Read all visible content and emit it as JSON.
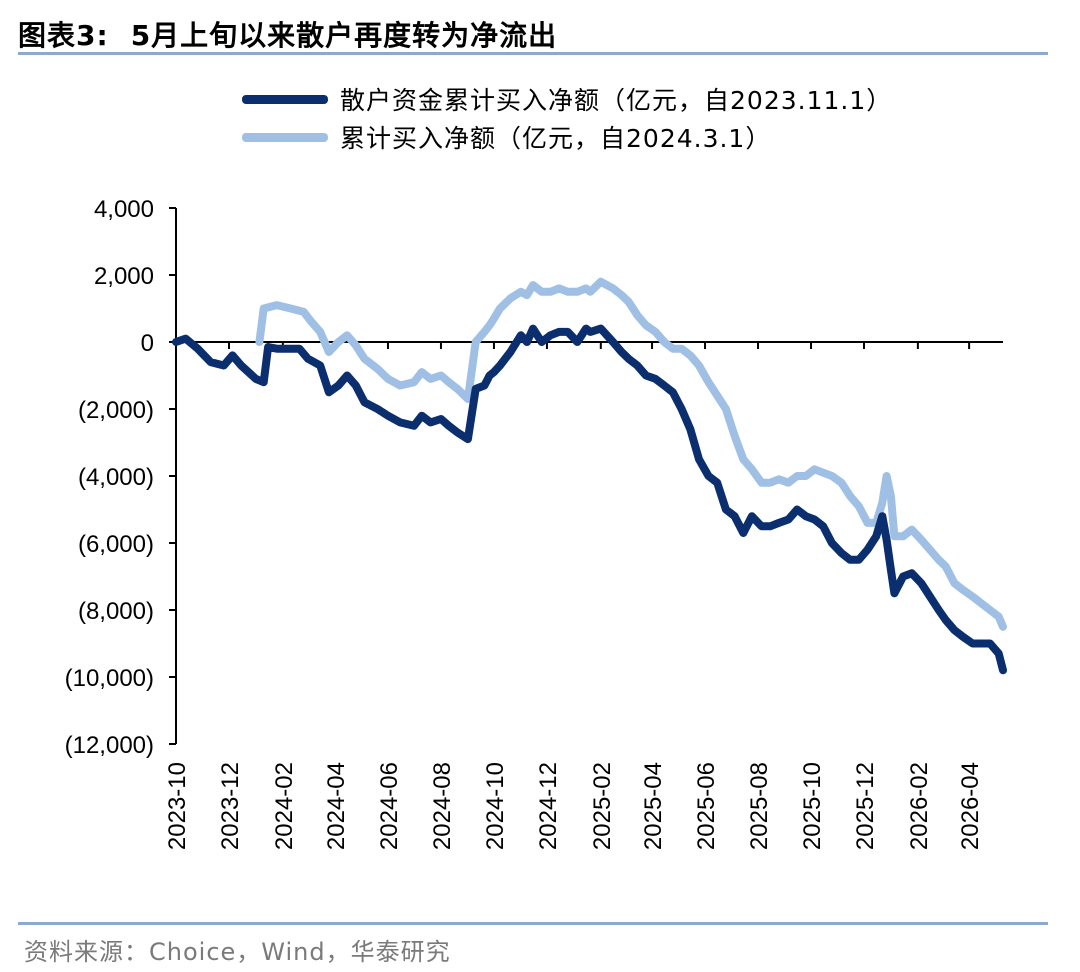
{
  "figure": {
    "label": "图表3:",
    "title": "5月上旬以来散户再度转为净流出",
    "source": "资料来源：Choice，Wind，华泰研究"
  },
  "chart_data": {
    "type": "line",
    "ylim": [
      -12000,
      4000
    ],
    "yticks": [
      4000,
      2000,
      0,
      -2000,
      -4000,
      -6000,
      -8000,
      -10000,
      -12000
    ],
    "ytick_labels": [
      "4,000",
      "2,000",
      "0",
      "(2,000)",
      "(4,000)",
      "(6,000)",
      "(8,000)",
      "(10,000)",
      "(12,000)"
    ],
    "xlim": [
      "2023-10-01",
      "2026-05-10"
    ],
    "xtick_labels": [
      "2023-10",
      "2023-12",
      "2024-02",
      "2024-04",
      "2024-06",
      "2024-08",
      "2024-10",
      "2024-12",
      "2025-02",
      "2025-04",
      "2025-06",
      "2025-08",
      "2025-10",
      "2025-12",
      "2026-02",
      "2026-04"
    ],
    "grid": false,
    "legend_position": "top-left",
    "series": [
      {
        "name": "散户资金累计买入净额（亿元，自2023.11.1）",
        "color": "#0b2f6e",
        "x": [
          "2023-10-01",
          "2023-10-12",
          "2023-10-26",
          "2023-11-10",
          "2023-11-25",
          "2023-12-05",
          "2023-12-15",
          "2024-01-01",
          "2024-01-10",
          "2024-01-15",
          "2024-01-25",
          "2024-02-05",
          "2024-02-20",
          "2024-03-01",
          "2024-03-15",
          "2024-03-25",
          "2024-04-05",
          "2024-04-15",
          "2024-04-25",
          "2024-05-05",
          "2024-05-20",
          "2024-06-01",
          "2024-06-15",
          "2024-07-01",
          "2024-07-10",
          "2024-07-20",
          "2024-08-01",
          "2024-08-10",
          "2024-08-20",
          "2024-09-01",
          "2024-09-10",
          "2024-09-20",
          "2024-09-26",
          "2024-10-01",
          "2024-10-08",
          "2024-10-20",
          "2024-11-01",
          "2024-11-08",
          "2024-11-15",
          "2024-11-25",
          "2024-12-05",
          "2024-12-15",
          "2024-12-25",
          "2025-01-05",
          "2025-01-15",
          "2025-01-20",
          "2025-02-01",
          "2025-02-15",
          "2025-02-25",
          "2025-03-05",
          "2025-03-15",
          "2025-03-25",
          "2025-04-05",
          "2025-04-15",
          "2025-04-25",
          "2025-05-05",
          "2025-05-15",
          "2025-05-25",
          "2025-06-05",
          "2025-06-15",
          "2025-06-25",
          "2025-07-05",
          "2025-07-15",
          "2025-07-25",
          "2025-08-05",
          "2025-08-15",
          "2025-08-25",
          "2025-09-05",
          "2025-09-15",
          "2025-09-25",
          "2025-10-05",
          "2025-10-15",
          "2025-10-25",
          "2025-11-05",
          "2025-11-15",
          "2025-11-25",
          "2025-12-05",
          "2025-12-15",
          "2025-12-22",
          "2025-12-27",
          "2026-01-01",
          "2026-01-05",
          "2026-01-15",
          "2026-01-25",
          "2026-02-05",
          "2026-02-15",
          "2026-02-25",
          "2026-03-05",
          "2026-03-15",
          "2026-03-25",
          "2026-04-05",
          "2026-04-15",
          "2026-04-25",
          "2026-05-05",
          "2026-05-10"
        ],
        "values": [
          0,
          100,
          -200,
          -600,
          -700,
          -400,
          -700,
          -1100,
          -1200,
          -150,
          -200,
          -200,
          -200,
          -500,
          -700,
          -1500,
          -1300,
          -1000,
          -1300,
          -1800,
          -2000,
          -2200,
          -2400,
          -2500,
          -2200,
          -2400,
          -2300,
          -2500,
          -2700,
          -2900,
          -1400,
          -1300,
          -1000,
          -900,
          -700,
          -300,
          200,
          0,
          400,
          0,
          200,
          300,
          300,
          0,
          400,
          300,
          400,
          0,
          -300,
          -500,
          -700,
          -1000,
          -1100,
          -1300,
          -1500,
          -2000,
          -2600,
          -3500,
          -4000,
          -4200,
          -5000,
          -5200,
          -5700,
          -5200,
          -5500,
          -5500,
          -5400,
          -5300,
          -5000,
          -5200,
          -5300,
          -5500,
          -6000,
          -6300,
          -6500,
          -6500,
          -6200,
          -5800,
          -5200,
          -5900,
          -6800,
          -7500,
          -7000,
          -6900,
          -7200,
          -7600,
          -8000,
          -8300,
          -8600,
          -8800,
          -9000,
          -9000,
          -9000,
          -9300,
          -9800
        ]
      },
      {
        "name": "累计买入净额（亿元，自2024.3.1）",
        "color": "#9fc0e4",
        "x": [
          "2024-01-05",
          "2024-01-10",
          "2024-01-25",
          "2024-02-10",
          "2024-02-25",
          "2024-03-05",
          "2024-03-15",
          "2024-03-25",
          "2024-04-05",
          "2024-04-15",
          "2024-04-25",
          "2024-05-05",
          "2024-05-20",
          "2024-06-01",
          "2024-06-15",
          "2024-07-01",
          "2024-07-10",
          "2024-07-20",
          "2024-08-01",
          "2024-08-10",
          "2024-08-20",
          "2024-09-01",
          "2024-09-10",
          "2024-09-20",
          "2024-09-26",
          "2024-10-01",
          "2024-10-08",
          "2024-10-20",
          "2024-11-01",
          "2024-11-08",
          "2024-11-15",
          "2024-11-25",
          "2024-12-05",
          "2024-12-15",
          "2024-12-25",
          "2025-01-05",
          "2025-01-15",
          "2025-01-20",
          "2025-02-01",
          "2025-02-15",
          "2025-02-25",
          "2025-03-05",
          "2025-03-15",
          "2025-03-25",
          "2025-04-05",
          "2025-04-15",
          "2025-04-25",
          "2025-05-05",
          "2025-05-15",
          "2025-05-25",
          "2025-06-05",
          "2025-06-15",
          "2025-06-25",
          "2025-07-05",
          "2025-07-15",
          "2025-07-25",
          "2025-08-05",
          "2025-08-15",
          "2025-08-25",
          "2025-09-05",
          "2025-09-15",
          "2025-09-25",
          "2025-10-05",
          "2025-10-15",
          "2025-10-25",
          "2025-11-05",
          "2025-11-15",
          "2025-11-25",
          "2025-12-05",
          "2025-12-15",
          "2025-12-22",
          "2025-12-27",
          "2026-01-01",
          "2026-01-05",
          "2026-01-15",
          "2026-01-25",
          "2026-02-05",
          "2026-02-15",
          "2026-02-25",
          "2026-03-05",
          "2026-03-15",
          "2026-03-25",
          "2026-04-05",
          "2026-04-15",
          "2026-04-25",
          "2026-05-05",
          "2026-05-10"
        ],
        "values": [
          0,
          1000,
          1100,
          1000,
          900,
          600,
          300,
          -300,
          0,
          200,
          -100,
          -500,
          -800,
          -1100,
          -1300,
          -1200,
          -900,
          -1100,
          -1000,
          -1200,
          -1400,
          -1700,
          0,
          300,
          500,
          700,
          1000,
          1300,
          1500,
          1400,
          1700,
          1500,
          1500,
          1600,
          1500,
          1500,
          1600,
          1500,
          1800,
          1600,
          1400,
          1200,
          800,
          500,
          300,
          0,
          -200,
          -200,
          -400,
          -700,
          -1200,
          -1600,
          -2000,
          -2800,
          -3500,
          -3800,
          -4200,
          -4200,
          -4100,
          -4200,
          -4000,
          -4000,
          -3800,
          -3900,
          -4000,
          -4200,
          -4600,
          -4900,
          -5400,
          -5400,
          -4800,
          -4000,
          -4600,
          -5800,
          -5800,
          -5600,
          -5900,
          -6200,
          -6500,
          -6700,
          -7200,
          -7400,
          -7600,
          -7800,
          -8000,
          -8200,
          -8500
        ]
      }
    ]
  }
}
